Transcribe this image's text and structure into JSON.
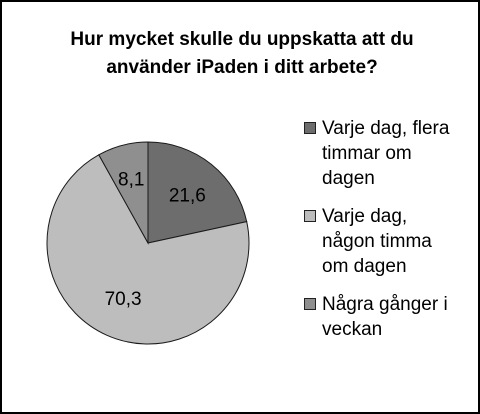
{
  "chart_data": {
    "type": "pie",
    "title_lines": [
      "Hur mycket skulle du uppskatta att du",
      "använder iPaden i ditt arbete?"
    ],
    "legend_position": "right",
    "slices": [
      {
        "label_lines": [
          "Varje dag, flera",
          "timmar om",
          "dagen"
        ],
        "value": 21.6,
        "value_label": "21,6",
        "color": "#6d6d6d"
      },
      {
        "label_lines": [
          "Varje dag,",
          "någon timma",
          "om dagen"
        ],
        "value": 70.3,
        "value_label": "70,3",
        "color": "#bdbdbd"
      },
      {
        "label_lines": [
          "Några gånger i",
          "veckan"
        ],
        "value": 8.1,
        "value_label": "8,1",
        "color": "#8f8f8f"
      }
    ]
  }
}
